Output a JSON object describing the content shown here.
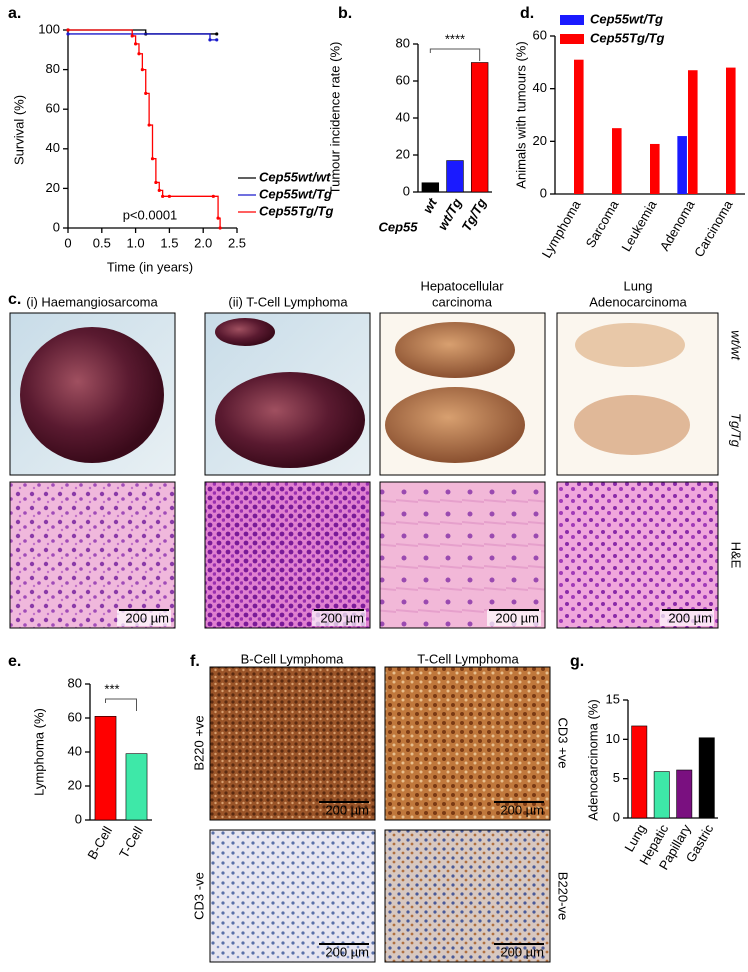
{
  "panel_labels": [
    "a.",
    "b.",
    "c.",
    "d.",
    "e.",
    "f.",
    "g."
  ],
  "chart_data": [
    {
      "type": "line",
      "xlabel": "Time (in years)",
      "ylabel": "Survival (%)",
      "annotation": "p<0.0001",
      "step": true,
      "xlim": [
        0,
        2.5
      ],
      "xticks": [
        0,
        0.5,
        {
          "value": 1,
          "label": "1.0"
        },
        1.5,
        {
          "value": 2,
          "label": "2.0"
        },
        2.5
      ],
      "ylim": [
        0,
        100
      ],
      "yticks": [
        0,
        20,
        40,
        60,
        80,
        100
      ],
      "series": [
        {
          "name": "Cep55wt/wt",
          "color": "#000000",
          "x": [
            0,
            1.15,
            2.2
          ],
          "values": [
            100,
            98,
            98
          ]
        },
        {
          "name": "Cep55wt/Tg",
          "color": "#1a1acc",
          "x": [
            0,
            2.1,
            2.2
          ],
          "values": [
            98,
            95,
            95
          ]
        },
        {
          "name": "Cep55Tg/Tg",
          "color": "#ff0000",
          "x": [
            0,
            0.95,
            1.0,
            1.05,
            1.1,
            1.15,
            1.2,
            1.25,
            1.3,
            1.35,
            1.4,
            1.5,
            2.15,
            2.22,
            2.25
          ],
          "values": [
            100,
            97,
            93,
            88,
            80,
            68,
            52,
            35,
            23,
            19,
            16,
            16,
            16,
            5,
            0
          ]
        }
      ]
    },
    {
      "type": "bar",
      "ylabel": "Tumour incidence rate (%)",
      "xlabel": "Cep55",
      "annotation": "****",
      "categories": [
        "wt",
        "wt/Tg",
        "Tg/Tg"
      ],
      "values": [
        5,
        17,
        70
      ],
      "colors": [
        "#000000",
        "#1a1aff",
        "#ff0000"
      ],
      "ylim": [
        0,
        80
      ],
      "yticks": [
        0,
        20,
        40,
        60,
        80
      ]
    },
    {
      "type": "bar",
      "ylabel": "Animals with tumours (%)",
      "categories": [
        "Lymphoma",
        "Sarcoma",
        "Leukemia",
        "Adenoma",
        "Carcinoma"
      ],
      "series": [
        {
          "name": "Cep55wt/Tg",
          "color": "#1a1aff",
          "values": [
            0,
            0,
            0,
            22,
            0
          ]
        },
        {
          "name": "Cep55Tg/Tg",
          "color": "#ff0000",
          "values": [
            51,
            25,
            19,
            47,
            48
          ]
        }
      ],
      "legend": "top",
      "ylim": [
        0,
        60
      ],
      "yticks": [
        0,
        20,
        40,
        60
      ]
    },
    {
      "type": "bar",
      "ylabel": "Lymphoma (%)",
      "annotation": "***",
      "categories": [
        "B-Cell",
        "T-Cell"
      ],
      "values": [
        61,
        39
      ],
      "colors": [
        "#ff0000",
        "#3ee8a8"
      ],
      "ylim": [
        0,
        80
      ],
      "yticks": [
        0,
        20,
        40,
        60,
        80
      ]
    },
    {
      "type": "bar",
      "ylabel": "Adenocarcinoma (%)",
      "categories": [
        "Lung",
        "Hepatic",
        "Papillary",
        "Gastric"
      ],
      "values": [
        11.7,
        5.9,
        6.1,
        10.2
      ],
      "colors": [
        "#ff0000",
        "#3ee8a8",
        "#7a1080",
        "#000000"
      ],
      "ylim": [
        0,
        15
      ],
      "yticks": [
        0,
        5,
        10,
        15
      ]
    }
  ],
  "figure_c": {
    "titles": [
      [
        "(i) Haemangiosarcoma"
      ],
      [
        "(ii) T-Cell Lymphoma"
      ],
      [
        "Hepatocellular",
        "carcinoma"
      ],
      [
        "Lung",
        "Adenocarcinoma"
      ]
    ],
    "row_labels": [
      "wt/wt",
      "Tg/Tg",
      "H&E"
    ],
    "scale_bar": "200 µm"
  },
  "figure_f": {
    "titles": [
      "B-Cell Lymphoma",
      "T-Cell Lymphoma"
    ],
    "stain_labels": [
      "B220 +ve",
      "CD3 +ve",
      "CD3 -ve",
      "B220-ve"
    ],
    "scale_bar": "200 µm"
  }
}
